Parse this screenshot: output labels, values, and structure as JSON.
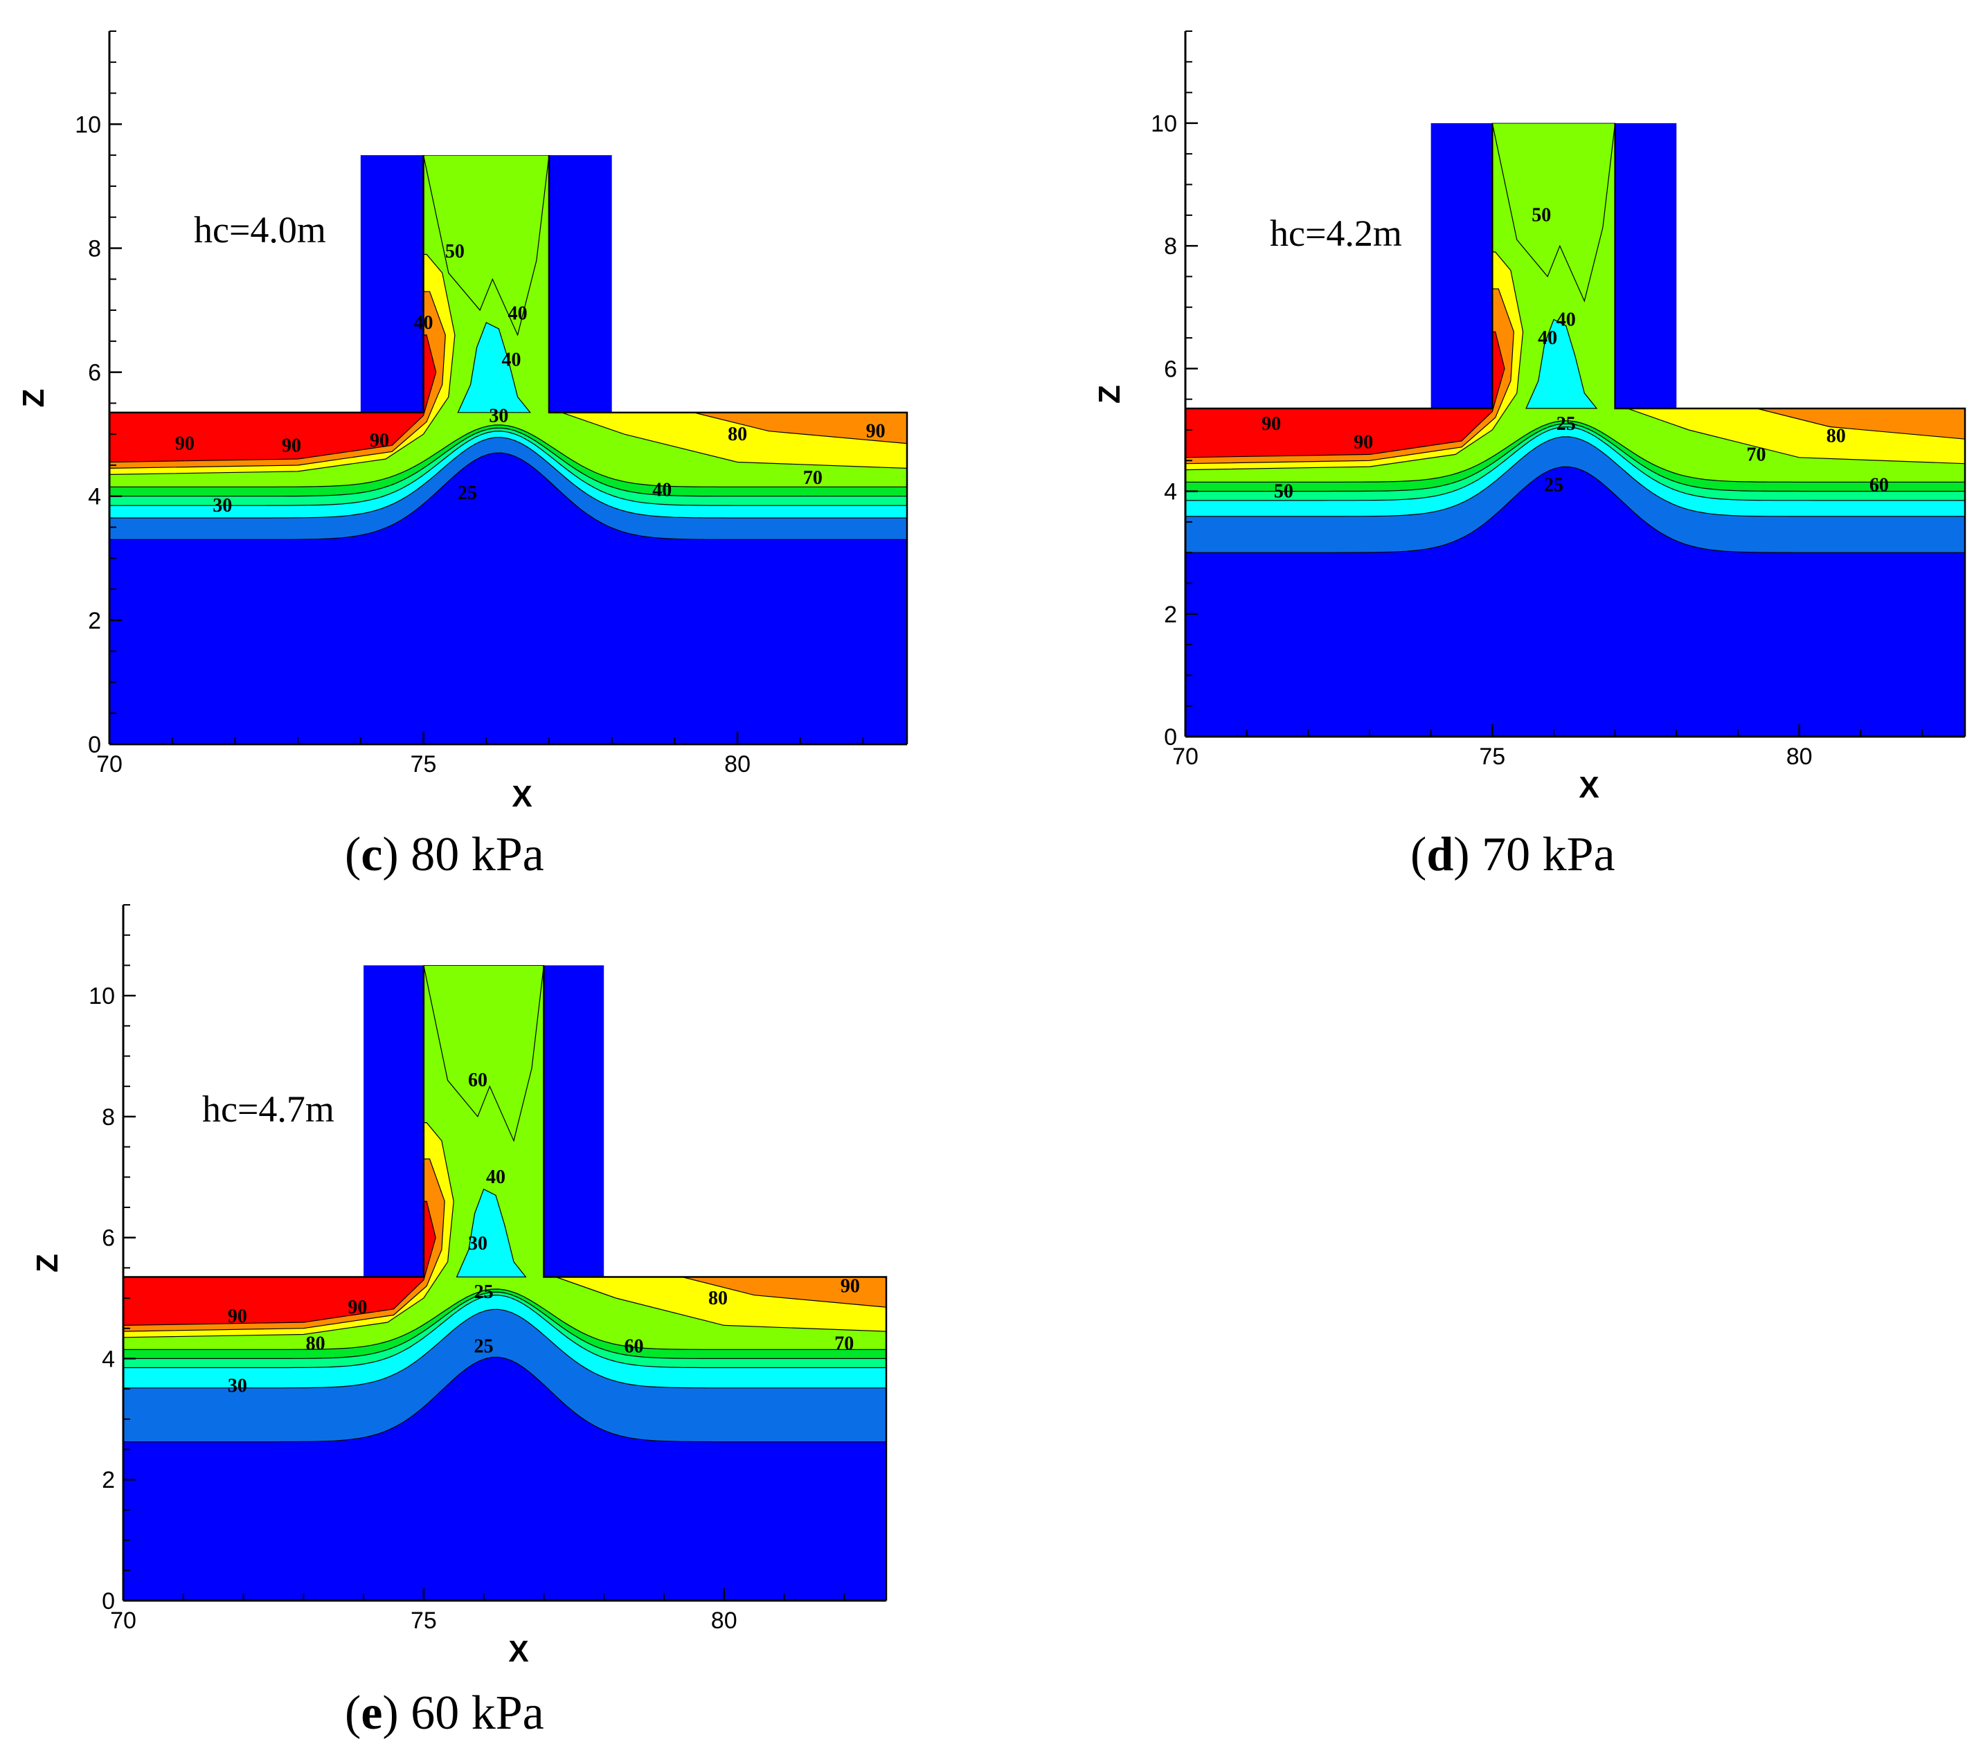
{
  "colors": {
    "bands": [
      "#0000ff",
      "#0a6fe6",
      "#00ffff",
      "#00ff88",
      "#00e628",
      "#7fff00",
      "#ffff00",
      "#ff8c00",
      "#ff0000"
    ],
    "wall": "#0000ff",
    "line": "#000000"
  },
  "chart_data": [
    {
      "type": "contour",
      "panel_label": "c",
      "caption_text": "80 kPa",
      "annotation": "hc=4.0m",
      "xlabel": "X",
      "ylabel": "Z",
      "xlim": [
        70,
        82.7
      ],
      "ylim": [
        0,
        11.5
      ],
      "xticks": [
        "70",
        "75",
        "80"
      ],
      "yticks": [
        "0",
        "2",
        "4",
        "6",
        "8",
        "10"
      ],
      "column_top": 9.5,
      "contour_labels": [
        "90",
        "90",
        "90",
        "50",
        "40",
        "40",
        "40",
        "30",
        "25",
        "30",
        "40",
        "70",
        "80",
        "90"
      ]
    },
    {
      "type": "contour",
      "panel_label": "d",
      "caption_text": "70 kPa",
      "annotation": "hc=4.2m",
      "xlabel": "X",
      "ylabel": "Z",
      "xlim": [
        70,
        82.7
      ],
      "ylim": [
        0,
        11.5
      ],
      "xticks": [
        "70",
        "75",
        "80"
      ],
      "yticks": [
        "0",
        "2",
        "4",
        "6",
        "8",
        "10"
      ],
      "column_top": 10.0,
      "contour_labels": [
        "90",
        "90",
        "50",
        "50",
        "40",
        "40",
        "25",
        "25",
        "70",
        "80",
        "60"
      ]
    },
    {
      "type": "contour",
      "panel_label": "e",
      "caption_text": "60 kPa",
      "annotation": "hc=4.7m",
      "xlabel": "X",
      "ylabel": "Z",
      "xlim": [
        70,
        82.7
      ],
      "ylim": [
        0,
        11.5
      ],
      "xticks": [
        "70",
        "75",
        "80"
      ],
      "yticks": [
        "0",
        "2",
        "4",
        "6",
        "8",
        "10"
      ],
      "column_top": 10.5,
      "contour_labels": [
        "90",
        "90",
        "80",
        "30",
        "60",
        "40",
        "30",
        "25",
        "25",
        "60",
        "80",
        "90",
        "70"
      ]
    }
  ]
}
